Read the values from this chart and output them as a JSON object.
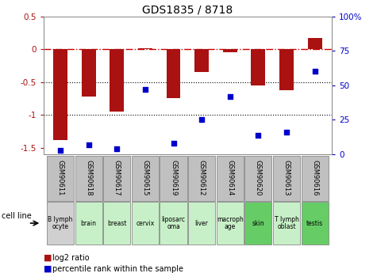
{
  "title": "GDS1835 / 8718",
  "samples": [
    "GSM90611",
    "GSM90618",
    "GSM90617",
    "GSM90615",
    "GSM90619",
    "GSM90612",
    "GSM90614",
    "GSM90620",
    "GSM90613",
    "GSM90616"
  ],
  "cell_lines": [
    "B lymph\nocyte",
    "brain",
    "breast",
    "cervix",
    "liposarc\noma",
    "liver",
    "macroph\nage",
    "skin",
    "T lymph\noblast",
    "testis"
  ],
  "cell_line_colors": [
    "#d0d0d0",
    "#c8f0c8",
    "#c8f0c8",
    "#c8f0c8",
    "#c8f0c8",
    "#c8f0c8",
    "#c8f0c8",
    "#66cc66",
    "#c8f0c8",
    "#66cc66"
  ],
  "log2_ratio": [
    -1.38,
    -0.72,
    -0.95,
    0.02,
    -0.75,
    -0.35,
    -0.05,
    -0.55,
    -0.62,
    0.17
  ],
  "percentile_rank": [
    3,
    7,
    4,
    47,
    8,
    25,
    42,
    14,
    16,
    60
  ],
  "bar_color": "#aa1111",
  "dot_color": "#0000cc",
  "ylim_left": [
    -1.6,
    0.5
  ],
  "ylim_right": [
    0,
    100
  ],
  "zero_line_color": "#cc0000",
  "dotted_line_color": "#000000",
  "right_yticks": [
    0,
    25,
    50,
    75,
    100
  ],
  "right_yticklabels": [
    "0",
    "25",
    "50",
    "75",
    "100%"
  ],
  "left_yticks": [
    -1.5,
    -1.0,
    -0.5,
    0.0,
    0.5
  ],
  "left_yticklabels": [
    "-1.5",
    "-1",
    "-0.5",
    "0",
    "0.5"
  ],
  "background_color": "#ffffff",
  "gsm_box_color": "#c0c0c0",
  "border_color": "#888888"
}
